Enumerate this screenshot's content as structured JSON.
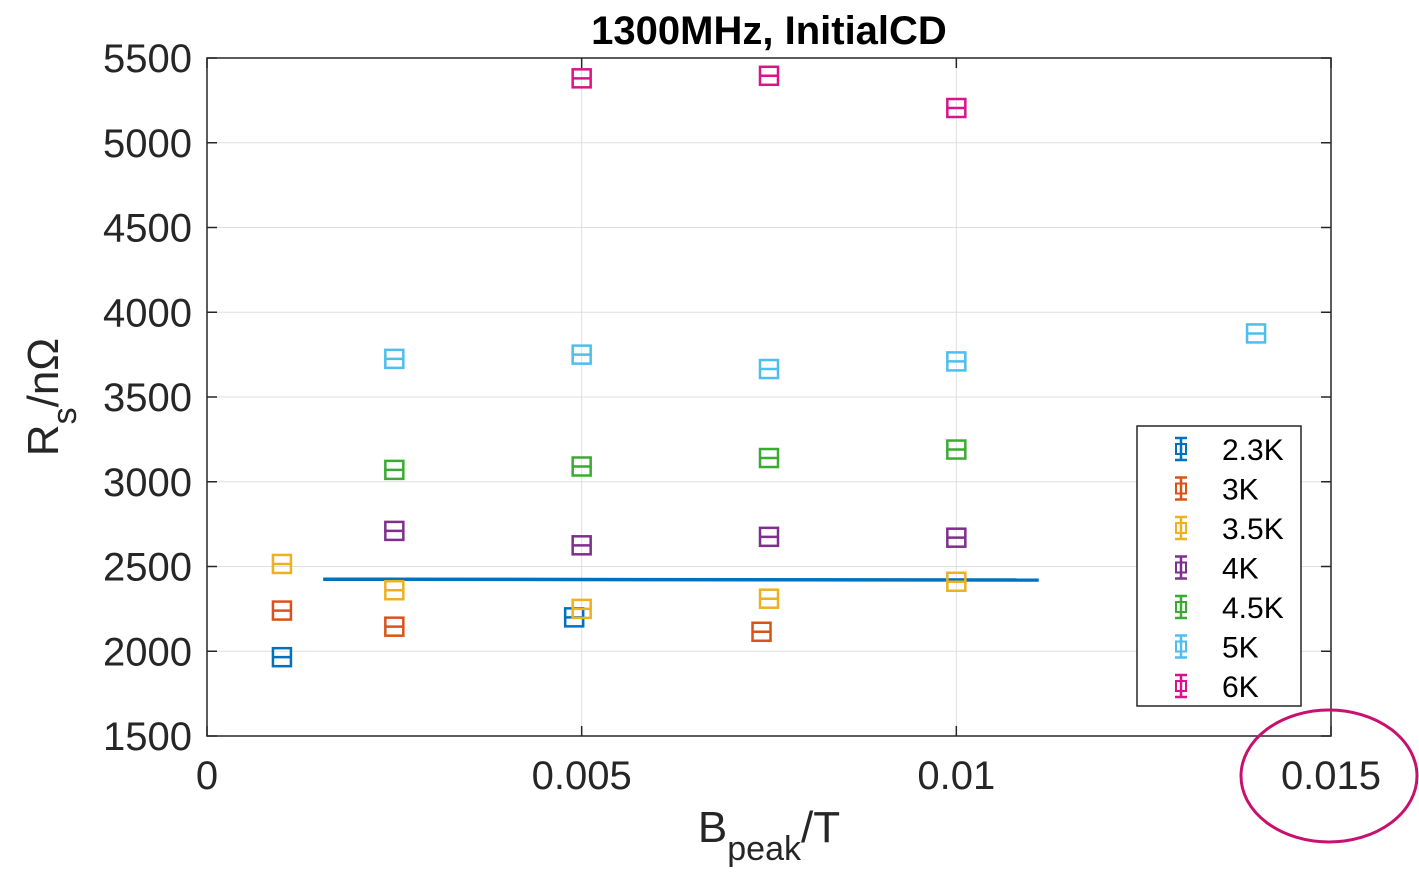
{
  "chart_data": {
    "type": "scatter",
    "title": "1300MHz, InitialCD",
    "xlabel": {
      "main": "B",
      "sub": "peak",
      "tail": "/T"
    },
    "ylabel": {
      "main": "R",
      "sub": "s",
      "tail": "/nΩ"
    },
    "xlim": [
      0,
      0.015
    ],
    "ylim": [
      1500,
      5500
    ],
    "xticks": [
      0,
      0.005,
      0.01,
      0.015
    ],
    "xtick_labels": [
      "0",
      "0.005",
      "0.01",
      "0.015"
    ],
    "yticks": [
      1500,
      2000,
      2500,
      3000,
      3500,
      4000,
      4500,
      5000,
      5500
    ],
    "ytick_labels": [
      "1500",
      "2000",
      "2500",
      "3000",
      "3500",
      "4000",
      "4500",
      "5000",
      "5500"
    ],
    "grid": true,
    "legend_position": "right",
    "series": [
      {
        "name": "2.3K",
        "color": "#0072BD",
        "points": [
          [
            0.001,
            1965
          ],
          [
            0.0049,
            2200
          ]
        ]
      },
      {
        "name": "3K",
        "color": "#D95319",
        "points": [
          [
            0.001,
            2240
          ],
          [
            0.0025,
            2145
          ],
          [
            0.0074,
            2115
          ]
        ]
      },
      {
        "name": "3.5K",
        "color": "#EDB120",
        "points": [
          [
            0.001,
            2515
          ],
          [
            0.0025,
            2360
          ],
          [
            0.005,
            2250
          ],
          [
            0.0075,
            2310
          ],
          [
            0.01,
            2410
          ]
        ]
      },
      {
        "name": "4K",
        "color": "#7E2F8E",
        "points": [
          [
            0.0025,
            2710
          ],
          [
            0.005,
            2625
          ],
          [
            0.0075,
            2675
          ],
          [
            0.01,
            2670
          ]
        ]
      },
      {
        "name": "4.5K",
        "color": "#3BAA32",
        "points": [
          [
            0.0025,
            3070
          ],
          [
            0.005,
            3090
          ],
          [
            0.0075,
            3140
          ],
          [
            0.01,
            3190
          ]
        ]
      },
      {
        "name": "5K",
        "color": "#4DBEEE",
        "points": [
          [
            0.0025,
            3725
          ],
          [
            0.005,
            3750
          ],
          [
            0.0075,
            3665
          ],
          [
            0.01,
            3710
          ],
          [
            0.014,
            3875
          ]
        ]
      },
      {
        "name": "6K",
        "color": "#D9138A",
        "points": [
          [
            0.005,
            5380
          ],
          [
            0.0075,
            5395
          ],
          [
            0.01,
            5205
          ]
        ]
      }
    ],
    "fit_line": {
      "color": "#0072BD",
      "points": [
        [
          0.00155,
          2425
        ],
        [
          0.0111,
          2420
        ]
      ]
    },
    "annotation": {
      "type": "ellipse",
      "color": "#C8106E",
      "around_tick": "0.015"
    }
  }
}
